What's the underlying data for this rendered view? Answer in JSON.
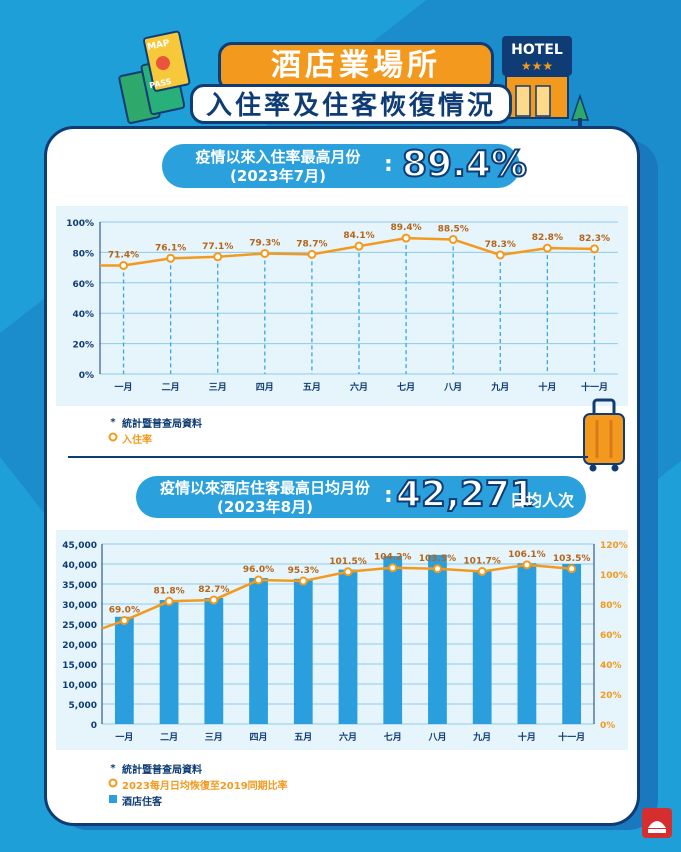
{
  "header": {
    "title": "酒店業場所",
    "subtitle": "入住率及住客恢復情況",
    "hotel_sign": "HOTEL",
    "ticket_words": [
      "MAP",
      "PASS"
    ]
  },
  "occupancy": {
    "highlight_label_line1": "疫情以來入住率最高月份",
    "highlight_label_line2": "(2023年7月)",
    "highlight_value": "89.4%",
    "legend_source": "統計暨普查局資料",
    "legend_series": "入住率"
  },
  "guests": {
    "highlight_label_line1": "疫情以來酒店住客最高日均月份",
    "highlight_label_line2": "(2023年8月)",
    "highlight_value": "42,271",
    "highlight_unit": "日均人次",
    "legend_source": "統計暨普查局資料",
    "legend_line": "2023每月日均恢復至2019同期比率",
    "legend_bar": "酒店住客"
  },
  "colors": {
    "accent": "#f39a1e",
    "navy": "#0f3c74",
    "blue": "#2aa0dc",
    "bar": "#2b9fde"
  },
  "chart_data": [
    {
      "type": "line",
      "categories": [
        "一月",
        "二月",
        "三月",
        "四月",
        "五月",
        "六月",
        "七月",
        "八月",
        "九月",
        "十月",
        "十一月"
      ],
      "series": [
        {
          "name": "入住率",
          "values": [
            71.4,
            76.1,
            77.1,
            79.3,
            78.7,
            84.1,
            89.4,
            88.5,
            78.3,
            82.8,
            82.3
          ]
        }
      ],
      "data_labels": [
        "71.4%",
        "76.1%",
        "77.1%",
        "79.3%",
        "78.7%",
        "84.1%",
        "89.4%",
        "88.5%",
        "78.3%",
        "82.8%",
        "82.3%"
      ],
      "yticks": [
        "0%",
        "20%",
        "40%",
        "60%",
        "80%",
        "100%"
      ],
      "ylim": [
        0,
        100
      ],
      "grid": true
    },
    {
      "type": "bar",
      "categories": [
        "一月",
        "二月",
        "三月",
        "四月",
        "五月",
        "六月",
        "七月",
        "八月",
        "九月",
        "十月",
        "十一月"
      ],
      "series": [
        {
          "name": "酒店住客",
          "type": "bar",
          "axis": "left",
          "values": [
            26800,
            31000,
            31500,
            36500,
            36300,
            38600,
            42000,
            42271,
            38500,
            40200,
            40000
          ]
        },
        {
          "name": "2023每月日均恢復至2019同期比率",
          "type": "line",
          "axis": "right",
          "values": [
            69.0,
            81.8,
            82.7,
            96.0,
            95.3,
            101.5,
            104.2,
            103.5,
            101.7,
            106.1,
            103.5
          ]
        }
      ],
      "data_labels": [
        "69.0%",
        "81.8%",
        "82.7%",
        "96.0%",
        "95.3%",
        "101.5%",
        "104.2%",
        "103.5%",
        "101.7%",
        "106.1%",
        "103.5%"
      ],
      "yticks_left": [
        "0",
        "5,000",
        "10,000",
        "15,000",
        "20,000",
        "25,000",
        "30,000",
        "35,000",
        "40,000",
        "45,000"
      ],
      "yticks_right": [
        "0%",
        "20%",
        "40%",
        "60%",
        "80%",
        "100%",
        "120%"
      ],
      "ylim_left": [
        0,
        45000
      ],
      "ylim_right": [
        0,
        120
      ],
      "grid": true
    }
  ]
}
